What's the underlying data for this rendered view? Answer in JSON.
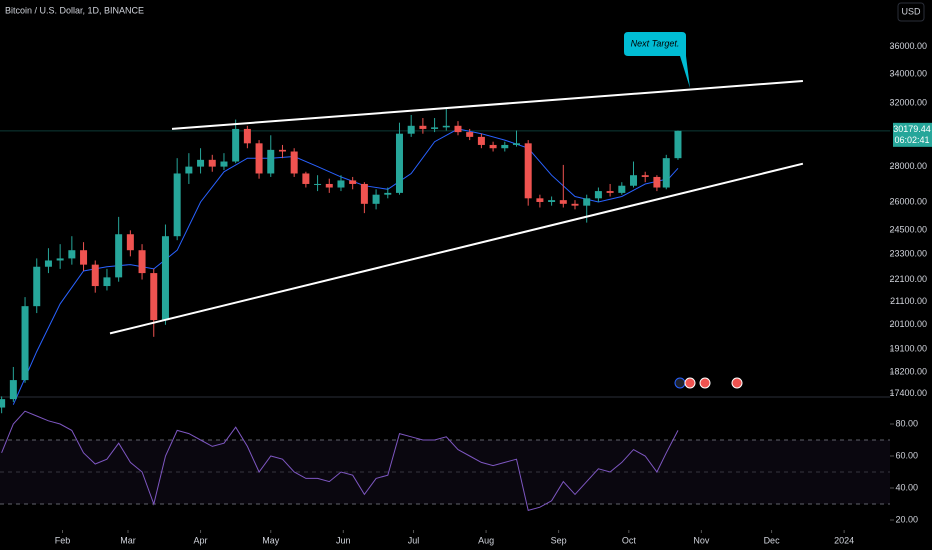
{
  "chart_data": {
    "type": "candlestick",
    "title": "Bitcoin / U.S. Dollar, 1D, BINANCE",
    "currency": "USD",
    "log_scale": true,
    "up_color": "#26a69a",
    "down_color": "#ef5350",
    "x": [
      5,
      10,
      15,
      20,
      25,
      30,
      35,
      40,
      45,
      50,
      55,
      60,
      65,
      70,
      75,
      80,
      85,
      90,
      95,
      100,
      105,
      110,
      115,
      120,
      125,
      130,
      135,
      140,
      145,
      150,
      155,
      160,
      165,
      170,
      175,
      180,
      185,
      190,
      195,
      200,
      205,
      210,
      215,
      220,
      225,
      230,
      235,
      240,
      245,
      250,
      255,
      260,
      265,
      270,
      275,
      280,
      285,
      289,
      294
    ],
    "xlim": [
      4.3,
      384.6
    ],
    "xticks": [
      {
        "value": 31,
        "label": "Feb"
      },
      {
        "value": 59,
        "label": "Mar"
      },
      {
        "value": 90,
        "label": "Apr"
      },
      {
        "value": 120,
        "label": "May"
      },
      {
        "value": 151,
        "label": "Jun"
      },
      {
        "value": 181,
        "label": "Jul"
      },
      {
        "value": 212,
        "label": "Aug"
      },
      {
        "value": 243,
        "label": "Sep"
      },
      {
        "value": 273,
        "label": "Oct"
      },
      {
        "value": 304,
        "label": "Nov"
      },
      {
        "value": 334,
        "label": "Dec"
      },
      {
        "value": 365,
        "label": "2024"
      }
    ],
    "ohlc": [
      [
        16900,
        17300,
        16700,
        17200
      ],
      [
        17200,
        18400,
        17100,
        17900
      ],
      [
        17900,
        21300,
        17800,
        20900
      ],
      [
        20900,
        23100,
        20600,
        22700
      ],
      [
        22700,
        23600,
        22400,
        23000
      ],
      [
        23000,
        23800,
        22600,
        23100
      ],
      [
        23100,
        24200,
        22800,
        23500
      ],
      [
        23500,
        23900,
        22500,
        22800
      ],
      [
        22800,
        23000,
        21500,
        21800
      ],
      [
        21800,
        22600,
        21600,
        22200
      ],
      [
        22200,
        25200,
        22000,
        24300
      ],
      [
        24300,
        24500,
        23200,
        23500
      ],
      [
        23500,
        23800,
        22100,
        22400
      ],
      [
        22400,
        22600,
        19600,
        20300
      ],
      [
        20300,
        24800,
        20100,
        24200
      ],
      [
        24200,
        28500,
        24000,
        27600
      ],
      [
        27600,
        28800,
        27000,
        28000
      ],
      [
        28000,
        29100,
        27600,
        28400
      ],
      [
        28400,
        28700,
        27700,
        28000
      ],
      [
        28000,
        28800,
        27800,
        28300
      ],
      [
        28300,
        30900,
        28200,
        30300
      ],
      [
        30300,
        30500,
        29100,
        29400
      ],
      [
        29400,
        29600,
        27300,
        27600
      ],
      [
        27600,
        29900,
        27400,
        29000
      ],
      [
        29000,
        29300,
        28500,
        28900
      ],
      [
        28900,
        29100,
        27400,
        27600
      ],
      [
        27600,
        27700,
        26800,
        27000
      ],
      [
        27000,
        27500,
        26600,
        27000
      ],
      [
        27000,
        27300,
        26500,
        26800
      ],
      [
        26800,
        27500,
        26600,
        27200
      ],
      [
        27200,
        27400,
        26700,
        27000
      ],
      [
        27000,
        27100,
        25400,
        25900
      ],
      [
        25900,
        26700,
        25600,
        26400
      ],
      [
        26400,
        26800,
        26200,
        26500
      ],
      [
        26500,
        30700,
        26400,
        30000
      ],
      [
        30000,
        31200,
        29800,
        30500
      ],
      [
        30500,
        31000,
        30000,
        30300
      ],
      [
        30300,
        31000,
        30100,
        30400
      ],
      [
        30400,
        31600,
        30200,
        30500
      ],
      [
        30500,
        30800,
        29900,
        30100
      ],
      [
        30100,
        30300,
        29600,
        29800
      ],
      [
        29800,
        30000,
        29100,
        29300
      ],
      [
        29300,
        29500,
        28900,
        29100
      ],
      [
        29100,
        29500,
        28900,
        29300
      ],
      [
        29300,
        30200,
        29200,
        29400
      ],
      [
        29400,
        29600,
        25800,
        26200
      ],
      [
        26200,
        26400,
        25700,
        26000
      ],
      [
        26000,
        26300,
        25800,
        26100
      ],
      [
        26100,
        28100,
        25700,
        25900
      ],
      [
        25900,
        26100,
        25600,
        25800
      ],
      [
        25800,
        26400,
        24900,
        26200
      ],
      [
        26200,
        26800,
        26000,
        26600
      ],
      [
        26600,
        27000,
        26300,
        26500
      ],
      [
        26500,
        27100,
        26400,
        26900
      ],
      [
        26900,
        28300,
        26800,
        27500
      ],
      [
        27500,
        27700,
        27100,
        27400
      ],
      [
        27400,
        27500,
        26600,
        26800
      ],
      [
        26800,
        28700,
        26700,
        28500
      ],
      [
        28500,
        30200,
        28400,
        30179.44
      ]
    ],
    "ylim": [
      17350,
      39700
    ],
    "yticks": [
      {
        "value": 36000,
        "label": "36000.00"
      },
      {
        "value": 34000,
        "label": "34000.00"
      },
      {
        "value": 32000,
        "label": "32000.00"
      },
      {
        "value": 28000,
        "label": "28000.00"
      },
      {
        "value": 26000,
        "label": "26000.00"
      },
      {
        "value": 24500,
        "label": "24500.00"
      },
      {
        "value": 23300,
        "label": "23300.00"
      },
      {
        "value": 22100,
        "label": "22100.00"
      },
      {
        "value": 21100,
        "label": "21100.00"
      },
      {
        "value": 20100,
        "label": "20100.00"
      },
      {
        "value": 19100,
        "label": "19100.00"
      },
      {
        "value": 18200,
        "label": "18200.00"
      },
      {
        "value": 17400,
        "label": "17400.00"
      }
    ],
    "last_price": 30179.44,
    "countdown": "06:02:41",
    "ma": {
      "color": "#2962ff",
      "x": [
        10,
        20,
        30,
        40,
        50,
        60,
        70,
        80,
        90,
        100,
        110,
        120,
        130,
        140,
        150,
        160,
        170,
        180,
        190,
        200,
        210,
        220,
        230,
        240,
        250,
        260,
        270,
        280,
        290,
        294
      ],
      "values": [
        17000,
        19000,
        21000,
        22500,
        22700,
        22800,
        22600,
        23500,
        26000,
        27700,
        28500,
        28500,
        28600,
        28000,
        27400,
        26900,
        26700,
        27600,
        29500,
        30300,
        30000,
        29600,
        29100,
        27500,
        26300,
        26000,
        26300,
        27000,
        27300,
        27900
      ]
    },
    "trendlines": [
      {
        "x": [
          77.8,
          347.4
        ],
        "y": [
          30300,
          33500
        ]
      },
      {
        "x": [
          51.3,
          347.4
        ],
        "y": [
          19740,
          28170
        ]
      }
    ],
    "annotation": "Next Target.",
    "rsi": {
      "color": "#7e57c2",
      "values": [
        62,
        80,
        88,
        85,
        82,
        80,
        76,
        62,
        55,
        58,
        68,
        56,
        50,
        30,
        60,
        76,
        74,
        70,
        66,
        68,
        78,
        66,
        50,
        60,
        58,
        50,
        46,
        46,
        44,
        50,
        48,
        36,
        46,
        48,
        74,
        72,
        70,
        70,
        72,
        64,
        60,
        56,
        54,
        56,
        58,
        26,
        28,
        32,
        44,
        36,
        44,
        52,
        50,
        56,
        64,
        60,
        50,
        62,
        76
      ],
      "ylim": [
        20,
        95
      ],
      "levels": [
        70,
        50,
        30
      ],
      "yticks": [
        {
          "value": 80,
          "label": "80.00"
        },
        {
          "value": 60,
          "label": "60.00"
        },
        {
          "value": 40,
          "label": "40.00"
        },
        {
          "value": 20,
          "label": "20.00"
        }
      ]
    }
  }
}
